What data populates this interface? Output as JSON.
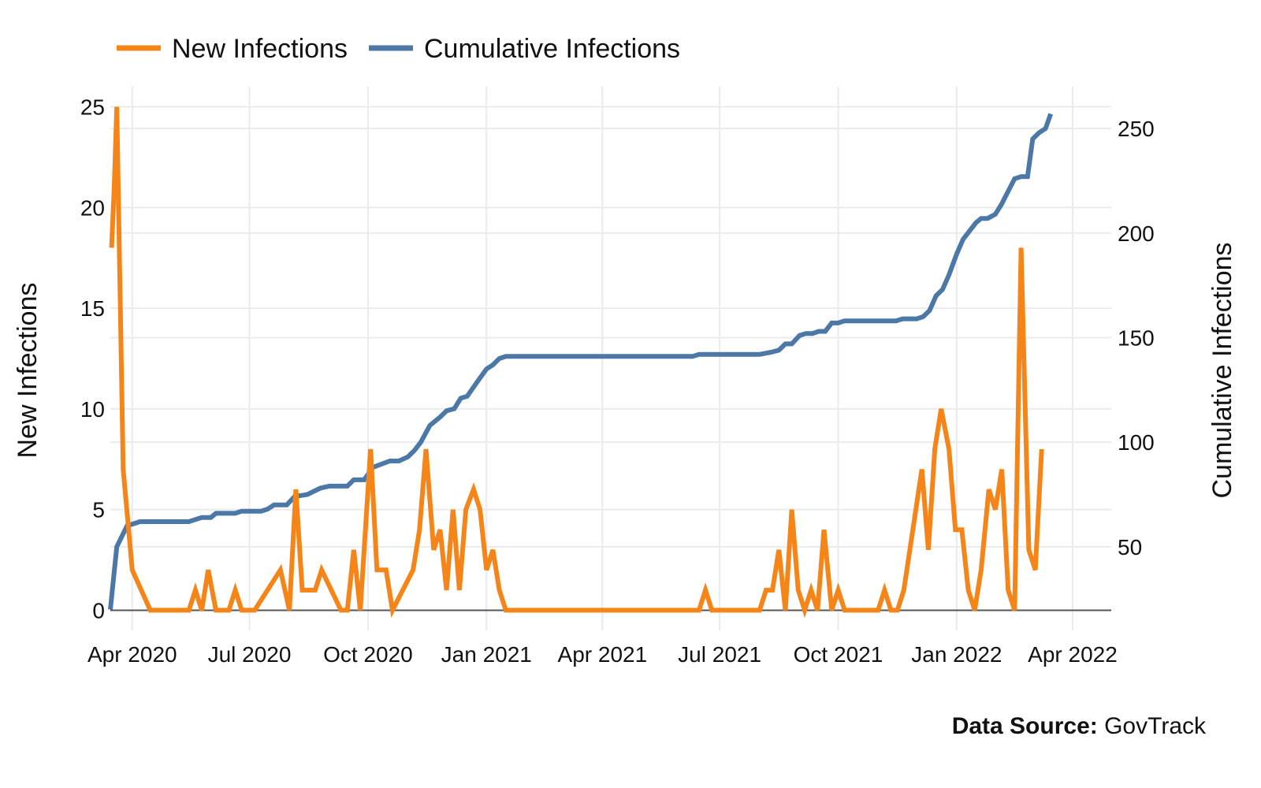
{
  "chart_data": {
    "type": "line",
    "legend": {
      "placement": "top-left"
    },
    "grid": true,
    "colors": {
      "new": "#f58518",
      "cumulative": "#4c78a8",
      "gridline": "#ebebeb",
      "baseline": "#555555"
    },
    "x_ticks": [
      "2020-04-01",
      "2020-07-01",
      "2020-10-01",
      "2021-01-01",
      "2021-04-01",
      "2021-07-01",
      "2021-10-01",
      "2022-01-01",
      "2022-04-01"
    ],
    "x_tick_labels": [
      "Apr 2020",
      "Jul 2020",
      "Oct 2020",
      "Jan 2021",
      "Apr 2021",
      "Jul 2021",
      "Oct 2021",
      "Jan 2022",
      "Apr 2022"
    ],
    "xlim": [
      "2020-03-15",
      "2022-05-01"
    ],
    "y_left": {
      "label": "New Infections",
      "lim": [
        -1,
        26
      ],
      "ticks": [
        0,
        5,
        10,
        15,
        20,
        25
      ]
    },
    "y_right": {
      "label": "Cumulative Infections",
      "lim": [
        10,
        270
      ],
      "ticks": [
        50,
        100,
        150,
        200,
        250
      ]
    },
    "series": [
      {
        "name": "New Infections",
        "axis": "left",
        "points": [
          [
            "2020-03-16",
            18
          ],
          [
            "2020-03-18",
            21
          ],
          [
            "2020-03-20",
            25
          ],
          [
            "2020-03-25",
            7
          ],
          [
            "2020-04-01",
            2
          ],
          [
            "2020-04-15",
            0
          ],
          [
            "2020-05-15",
            0
          ],
          [
            "2020-05-20",
            1
          ],
          [
            "2020-05-25",
            0
          ],
          [
            "2020-05-30",
            2
          ],
          [
            "2020-06-05",
            0
          ],
          [
            "2020-06-15",
            0
          ],
          [
            "2020-06-20",
            1
          ],
          [
            "2020-06-25",
            0
          ],
          [
            "2020-07-05",
            0
          ],
          [
            "2020-07-25",
            2
          ],
          [
            "2020-08-01",
            0
          ],
          [
            "2020-08-06",
            6
          ],
          [
            "2020-08-11",
            1
          ],
          [
            "2020-08-21",
            1
          ],
          [
            "2020-08-26",
            2
          ],
          [
            "2020-09-10",
            0
          ],
          [
            "2020-09-15",
            0
          ],
          [
            "2020-09-20",
            3
          ],
          [
            "2020-09-25",
            0
          ],
          [
            "2020-10-03",
            8
          ],
          [
            "2020-10-08",
            2
          ],
          [
            "2020-10-15",
            2
          ],
          [
            "2020-10-20",
            0
          ],
          [
            "2020-11-05",
            2
          ],
          [
            "2020-11-10",
            4
          ],
          [
            "2020-11-15",
            8
          ],
          [
            "2020-11-21",
            3
          ],
          [
            "2020-11-26",
            4
          ],
          [
            "2020-12-01",
            1
          ],
          [
            "2020-12-06",
            5
          ],
          [
            "2020-12-11",
            1
          ],
          [
            "2020-12-16",
            5
          ],
          [
            "2020-12-22",
            6
          ],
          [
            "2020-12-27",
            5
          ],
          [
            "2021-01-01",
            2
          ],
          [
            "2021-01-06",
            3
          ],
          [
            "2021-01-11",
            1
          ],
          [
            "2021-01-16",
            0
          ],
          [
            "2021-06-15",
            0
          ],
          [
            "2021-06-20",
            1
          ],
          [
            "2021-06-25",
            0
          ],
          [
            "2021-08-01",
            0
          ],
          [
            "2021-08-06",
            1
          ],
          [
            "2021-08-11",
            1
          ],
          [
            "2021-08-16",
            3
          ],
          [
            "2021-08-21",
            0
          ],
          [
            "2021-08-26",
            5
          ],
          [
            "2021-08-31",
            1
          ],
          [
            "2021-09-05",
            0
          ],
          [
            "2021-09-10",
            1
          ],
          [
            "2021-09-15",
            0
          ],
          [
            "2021-09-20",
            4
          ],
          [
            "2021-09-26",
            0
          ],
          [
            "2021-10-01",
            1
          ],
          [
            "2021-10-06",
            0
          ],
          [
            "2021-11-01",
            0
          ],
          [
            "2021-11-06",
            1
          ],
          [
            "2021-11-11",
            0
          ],
          [
            "2021-11-16",
            0
          ],
          [
            "2021-11-21",
            1
          ],
          [
            "2021-12-05",
            7
          ],
          [
            "2021-12-10",
            3
          ],
          [
            "2021-12-15",
            8
          ],
          [
            "2021-12-20",
            10
          ],
          [
            "2021-12-26",
            8
          ],
          [
            "2021-12-31",
            4
          ],
          [
            "2022-01-05",
            4
          ],
          [
            "2022-01-10",
            1
          ],
          [
            "2022-01-15",
            0
          ],
          [
            "2022-01-20",
            2
          ],
          [
            "2022-01-26",
            6
          ],
          [
            "2022-01-31",
            5
          ],
          [
            "2022-02-05",
            7
          ],
          [
            "2022-02-10",
            1
          ],
          [
            "2022-02-15",
            0
          ],
          [
            "2022-02-20",
            18
          ],
          [
            "2022-02-26",
            3
          ],
          [
            "2022-03-03",
            2
          ],
          [
            "2022-03-08",
            8
          ]
        ]
      },
      {
        "name": "Cumulative Infections",
        "axis": "right",
        "points": [
          [
            "2020-03-15",
            20
          ],
          [
            "2020-03-20",
            50
          ],
          [
            "2020-03-28",
            60
          ],
          [
            "2020-04-07",
            62
          ],
          [
            "2020-05-15",
            62
          ],
          [
            "2020-05-25",
            64
          ],
          [
            "2020-06-01",
            64
          ],
          [
            "2020-06-05",
            66
          ],
          [
            "2020-06-20",
            66
          ],
          [
            "2020-06-25",
            67
          ],
          [
            "2020-07-10",
            67
          ],
          [
            "2020-07-15",
            68
          ],
          [
            "2020-07-20",
            70
          ],
          [
            "2020-07-30",
            70
          ],
          [
            "2020-08-05",
            74
          ],
          [
            "2020-08-15",
            75
          ],
          [
            "2020-08-25",
            78
          ],
          [
            "2020-09-01",
            79
          ],
          [
            "2020-09-15",
            79
          ],
          [
            "2020-09-20",
            82
          ],
          [
            "2020-09-28",
            82
          ],
          [
            "2020-10-05",
            88
          ],
          [
            "2020-10-18",
            91
          ],
          [
            "2020-10-25",
            91
          ],
          [
            "2020-11-01",
            93
          ],
          [
            "2020-11-06",
            96
          ],
          [
            "2020-11-11",
            100
          ],
          [
            "2020-11-18",
            108
          ],
          [
            "2020-11-26",
            112
          ],
          [
            "2020-12-01",
            115
          ],
          [
            "2020-12-07",
            116
          ],
          [
            "2020-12-12",
            121
          ],
          [
            "2020-12-17",
            122
          ],
          [
            "2020-12-25",
            129
          ],
          [
            "2021-01-01",
            135
          ],
          [
            "2021-01-06",
            137
          ],
          [
            "2021-01-11",
            140
          ],
          [
            "2021-01-16",
            141
          ],
          [
            "2021-06-10",
            141
          ],
          [
            "2021-06-15",
            142
          ],
          [
            "2021-08-01",
            142
          ],
          [
            "2021-08-10",
            143
          ],
          [
            "2021-08-16",
            144
          ],
          [
            "2021-08-21",
            147
          ],
          [
            "2021-08-26",
            147
          ],
          [
            "2021-09-01",
            151
          ],
          [
            "2021-09-06",
            152
          ],
          [
            "2021-09-11",
            152
          ],
          [
            "2021-09-16",
            153
          ],
          [
            "2021-09-21",
            153
          ],
          [
            "2021-09-26",
            157
          ],
          [
            "2021-10-01",
            157
          ],
          [
            "2021-10-06",
            158
          ],
          [
            "2021-10-12",
            158
          ],
          [
            "2021-11-15",
            158
          ],
          [
            "2021-11-20",
            159
          ],
          [
            "2021-12-01",
            159
          ],
          [
            "2021-12-06",
            160
          ],
          [
            "2021-12-11",
            163
          ],
          [
            "2021-12-16",
            170
          ],
          [
            "2021-12-21",
            173
          ],
          [
            "2021-12-26",
            180
          ],
          [
            "2022-01-01",
            190
          ],
          [
            "2022-01-06",
            197
          ],
          [
            "2022-01-11",
            201
          ],
          [
            "2022-01-16",
            205
          ],
          [
            "2022-01-20",
            207
          ],
          [
            "2022-01-25",
            207
          ],
          [
            "2022-01-31",
            209
          ],
          [
            "2022-02-05",
            214
          ],
          [
            "2022-02-10",
            220
          ],
          [
            "2022-02-15",
            226
          ],
          [
            "2022-02-20",
            227
          ],
          [
            "2022-02-25",
            227
          ],
          [
            "2022-03-01",
            245
          ],
          [
            "2022-03-06",
            248
          ],
          [
            "2022-03-11",
            250
          ],
          [
            "2022-03-15",
            257
          ]
        ]
      }
    ]
  },
  "source": {
    "label": "Data Source:",
    "value": "GovTrack"
  }
}
